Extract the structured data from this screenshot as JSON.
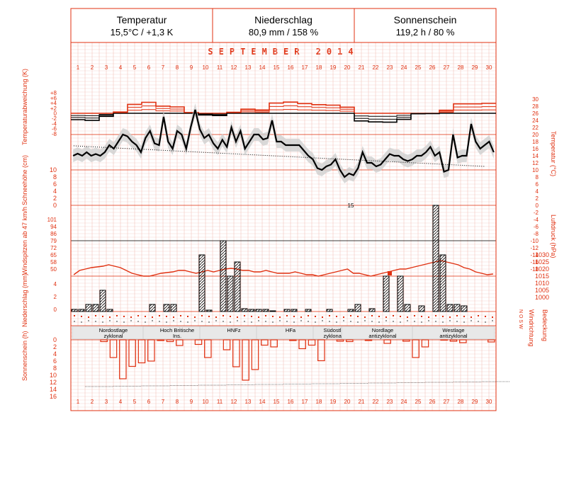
{
  "summary": [
    {
      "title": "Temperatur",
      "value": "15,5°C / +1,3 K"
    },
    {
      "title": "Niederschlag",
      "value": "80,9 mm / 158 %"
    },
    {
      "title": "Sonnenschein",
      "value": "119,2 h / 80 %"
    }
  ],
  "month_label": "SEPTEMBER 2014",
  "axis_titles": {
    "temp_anomaly": "Temperaturabweichung (K)",
    "snow_depth": "Schneehöhe (cm)",
    "wind_gust": "Windspitzen ab 47 km/h",
    "precip": "Niederschlag (mm)",
    "sunshine": "Sonnenschein (h)",
    "temperature": "Temperatur (°C)",
    "pressure": "Luftdruck (hPa)",
    "wind_dir": "Windrichtung",
    "cloud": "Bedeckung",
    "wind_dir_marks": "N  O  S  W"
  },
  "colors": {
    "accent": "#e03010",
    "grid": "#f0b8b0",
    "band": "#cfcfcf",
    "ink": "#000000"
  },
  "chart_data": {
    "type": "climate_diagram",
    "days": [
      1,
      2,
      3,
      4,
      5,
      6,
      7,
      8,
      9,
      10,
      11,
      12,
      13,
      14,
      15,
      16,
      17,
      18,
      19,
      20,
      21,
      22,
      23,
      24,
      25,
      26,
      27,
      28,
      29,
      30
    ],
    "temp_anomaly": {
      "ticks": [
        "+8",
        "+6",
        "+4",
        "+2",
        "0",
        "-2",
        "-4",
        "-6",
        "-8"
      ],
      "ylim": [
        -8,
        8
      ],
      "values": [
        -2.5,
        -2.8,
        -1.2,
        0.5,
        3.5,
        4.3,
        2.8,
        2.5,
        0.3,
        -0.7,
        -0.9,
        0.4,
        1.6,
        1.3,
        4.0,
        4.4,
        3.8,
        3.4,
        3.2,
        2.4,
        -3.0,
        -3.4,
        -3.5,
        -2.4,
        -0.2,
        -0.1,
        1.2,
        3.7,
        3.7,
        3.9
      ]
    },
    "temperature": {
      "ticks": [
        30,
        28,
        26,
        24,
        22,
        20,
        18,
        16,
        14,
        12,
        10,
        8,
        6,
        4,
        2,
        0,
        -2,
        -4,
        -6,
        -8,
        -10,
        -12,
        -14,
        -16,
        -18
      ],
      "ylim": [
        -18,
        30
      ],
      "series": [
        {
          "name": "daily mean",
          "values": [
            14,
            14.6,
            14,
            15,
            14,
            14.5,
            14,
            15,
            17,
            16,
            18,
            20,
            19.5,
            18,
            17,
            15,
            19,
            21,
            17.5,
            17,
            25,
            18,
            16,
            21,
            20,
            16,
            22,
            27,
            21.5,
            19,
            20,
            17.5,
            16,
            18.5,
            16.5,
            22,
            18,
            21,
            16,
            18,
            20,
            20,
            18.6,
            19,
            24,
            18,
            18,
            17,
            17,
            17,
            17,
            15.5,
            14,
            13,
            10.5,
            10,
            11,
            11.5,
            13,
            10,
            8,
            9,
            8.5,
            10.5,
            15,
            12,
            12,
            11,
            11.5,
            13,
            14.5,
            14,
            14,
            13,
            12.5,
            13,
            14,
            14,
            15,
            16.5,
            14,
            15,
            9.5,
            10,
            20,
            13.5,
            14,
            14,
            23,
            18,
            16,
            17,
            18,
            15
          ]
        },
        {
          "name": "daily normal",
          "values": [
            16.8,
            16.6,
            16.4,
            16.2,
            16,
            15.8,
            15.6,
            15.4,
            15.2,
            15,
            14.8,
            14.6,
            14.4,
            14.2,
            14,
            13.8,
            13.6,
            13.4,
            13.2,
            13,
            12.8,
            12.6,
            12.4,
            12.2,
            12,
            11.8,
            11.6,
            11.4,
            11.2,
            11
          ]
        }
      ]
    },
    "snow_depth": {
      "ticks": [
        10,
        8,
        6,
        4,
        2,
        0
      ],
      "ylim": [
        0,
        10
      ],
      "values": [
        0,
        0,
        0,
        0,
        0,
        0,
        0,
        0,
        0,
        0,
        0,
        0,
        0,
        0,
        0,
        0,
        0,
        0,
        0,
        0,
        0,
        0,
        0,
        0,
        0,
        0,
        0,
        0,
        0,
        0
      ]
    },
    "pressure": {
      "ticks": [
        1030,
        1025,
        1020,
        1015,
        1010,
        1005,
        1000
      ],
      "ylim": [
        995,
        1040
      ],
      "values": [
        1016,
        1019,
        1020,
        1021,
        1021.5,
        1022,
        1023,
        1022,
        1021,
        1019,
        1017,
        1016,
        1015,
        1015,
        1016,
        1017,
        1017.5,
        1018,
        1019,
        1019,
        1018,
        1017,
        1018,
        1019,
        1018,
        1019,
        1020,
        1020.5,
        1020,
        1019,
        1019,
        1018,
        1018,
        1019,
        1018,
        1017,
        1017,
        1017,
        1018,
        1017,
        1016,
        1016,
        1015,
        1016,
        1017,
        1018,
        1019,
        1020,
        1017,
        1017,
        1016,
        1015,
        1016,
        1017,
        1018,
        1019,
        1020,
        1020,
        1021,
        1022,
        1023,
        1024,
        1025,
        1026,
        1025,
        1024,
        1023,
        1021,
        1020,
        1018,
        1017,
        1016,
        1016.5
      ]
    },
    "wind_gust": {
      "ticks": [
        101,
        94,
        86,
        79,
        72,
        65,
        58,
        50
      ],
      "events": [
        {
          "day": 23,
          "value": 55
        }
      ]
    },
    "precip": {
      "ticks": [
        4,
        2,
        0
      ],
      "overflow_label": "15",
      "values": [
        0.3,
        0.3,
        1.0,
        1.0,
        3.0,
        0.3,
        0.0,
        0.0,
        0.0,
        0.0,
        0.0,
        1.0,
        0.0,
        1.0,
        1.0,
        0.0,
        0.0,
        0.0,
        8.0,
        0.2,
        0.0,
        10.0,
        5.0,
        7.0,
        0.4,
        0.3,
        0.3,
        0.3,
        0.1,
        0.0,
        0.3,
        0.3,
        0.0,
        0.3,
        0.0,
        0.0,
        0.3,
        0.0,
        0.0,
        0.3,
        1.0,
        0.0,
        0.4,
        0.0,
        5.0,
        0.0,
        5.0,
        1.0,
        0.0,
        0.8,
        0.0,
        15.0,
        8.0,
        1.0,
        1.0,
        0.8,
        0.0,
        0.0,
        0.0,
        0.0
      ]
    },
    "sunshine": {
      "ticks": [
        0,
        2,
        4,
        6,
        8,
        10,
        12,
        14,
        16
      ],
      "ylim": [
        0,
        16
      ],
      "values": [
        0,
        0,
        0,
        0.5,
        5,
        11,
        7.5,
        6.5,
        6,
        0.2,
        0.5,
        1.6,
        0,
        1.3,
        5,
        0,
        2.8,
        7.6,
        11.4,
        8.4,
        1.5,
        2,
        0,
        0.2,
        2.5,
        1.5,
        5.9,
        0,
        0.4,
        0.5,
        0,
        0.2,
        0,
        1,
        0,
        0.4,
        5,
        2,
        0,
        0.1,
        0.4,
        0.8,
        0,
        0,
        0.6
      ],
      "astronomical_possible": [
        13.2,
        13.1,
        13.0,
        12.9,
        12.8,
        12.7,
        12.6,
        12.5,
        12.4,
        12.3,
        12.2,
        12.1,
        12.0,
        11.9,
        11.8
      ]
    },
    "weather_regimes": [
      {
        "label": "Nordostlage zyklonal",
        "from": 1,
        "to": 6
      },
      {
        "label": "Hoch Britische Ins.",
        "from": 6,
        "to": 10
      },
      {
        "label": "HNFz",
        "from": 10,
        "to": 14
      },
      {
        "label": "HFa",
        "from": 14,
        "to": 18
      },
      {
        "label": "Südostl. zyklonal",
        "from": 18,
        "to": 20
      },
      {
        "label": "Nordlage antizyklonal",
        "from": 20,
        "to": 25
      },
      {
        "label": "Westlage antizyklonal",
        "from": 25,
        "to": 30
      }
    ]
  }
}
